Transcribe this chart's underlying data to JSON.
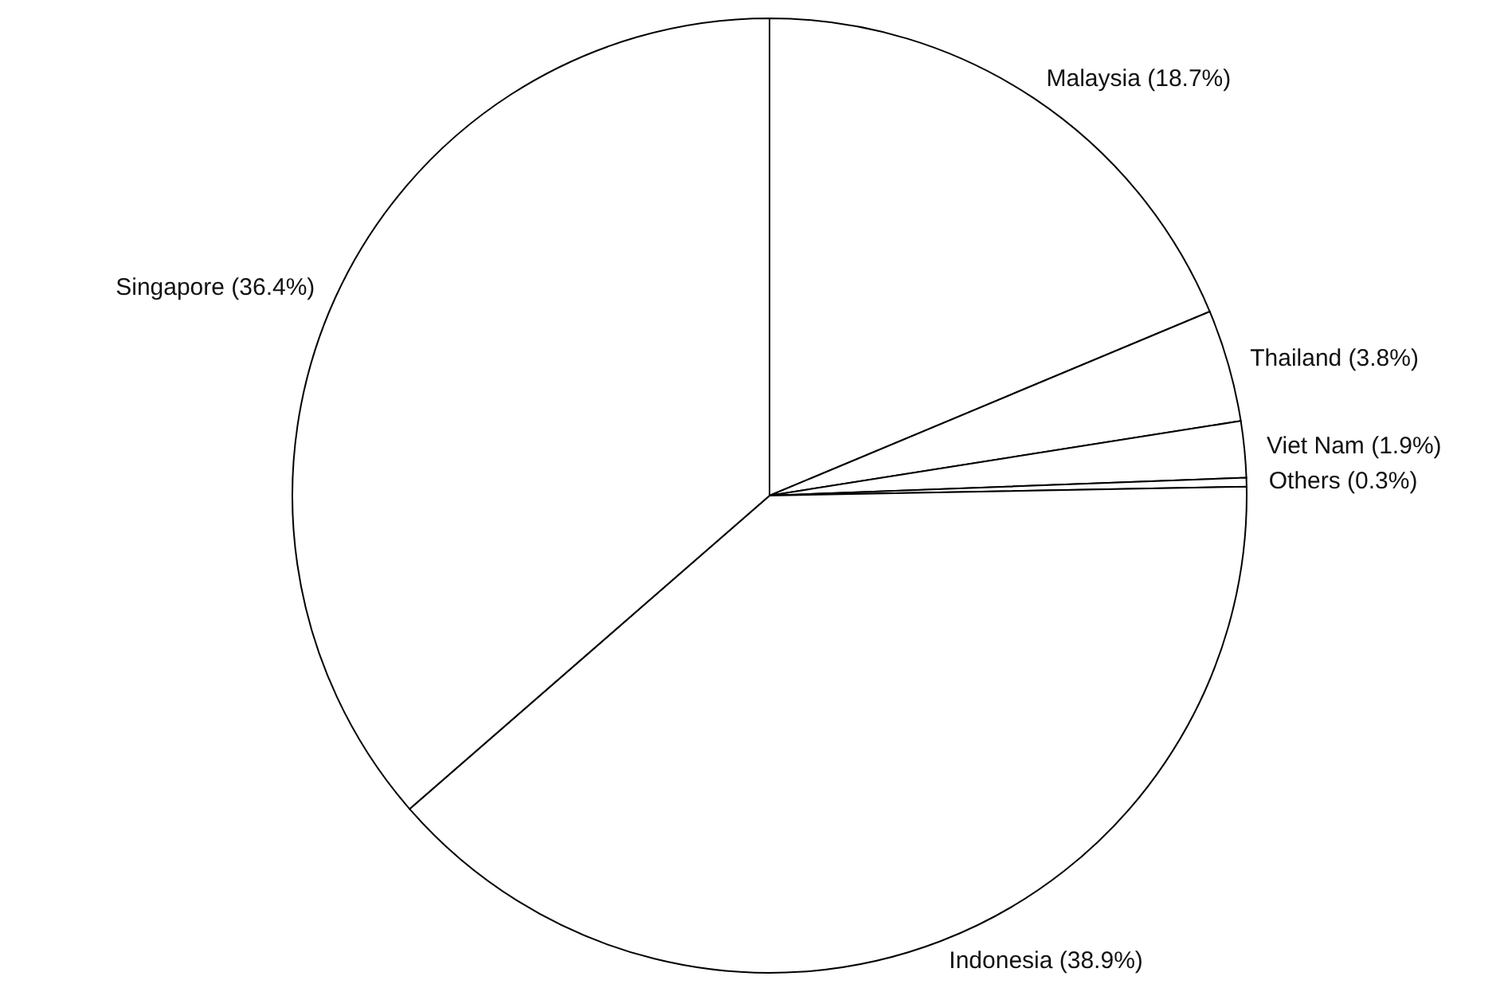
{
  "chart_data": {
    "type": "pie",
    "categories": [
      "Malaysia",
      "Thailand",
      "Viet Nam",
      "Others",
      "Indonesia",
      "Singapore"
    ],
    "values": [
      18.7,
      3.8,
      1.9,
      0.3,
      38.9,
      36.4
    ],
    "value_labels": [
      "(18.7%)",
      "(3.8%)",
      "(1.9%)",
      "(0.3%)",
      "(38.9%)",
      "(36.4%)"
    ],
    "colors": [
      "#ffffff",
      "#ffffff",
      "#ffffff",
      "#ffffff",
      "#ffffff",
      "#ffffff"
    ],
    "legend": false
  }
}
